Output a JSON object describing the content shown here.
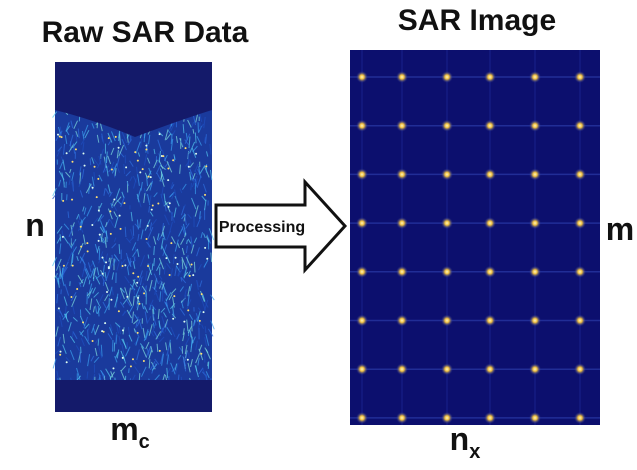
{
  "left_panel": {
    "title": "Raw SAR Data",
    "side_label": "n",
    "bottom_label": "m",
    "bottom_subscript": "c"
  },
  "arrow": {
    "label": "Processing"
  },
  "right_panel": {
    "title": "SAR Image",
    "side_label": "m",
    "bottom_label": "n",
    "bottom_subscript": "x"
  }
}
